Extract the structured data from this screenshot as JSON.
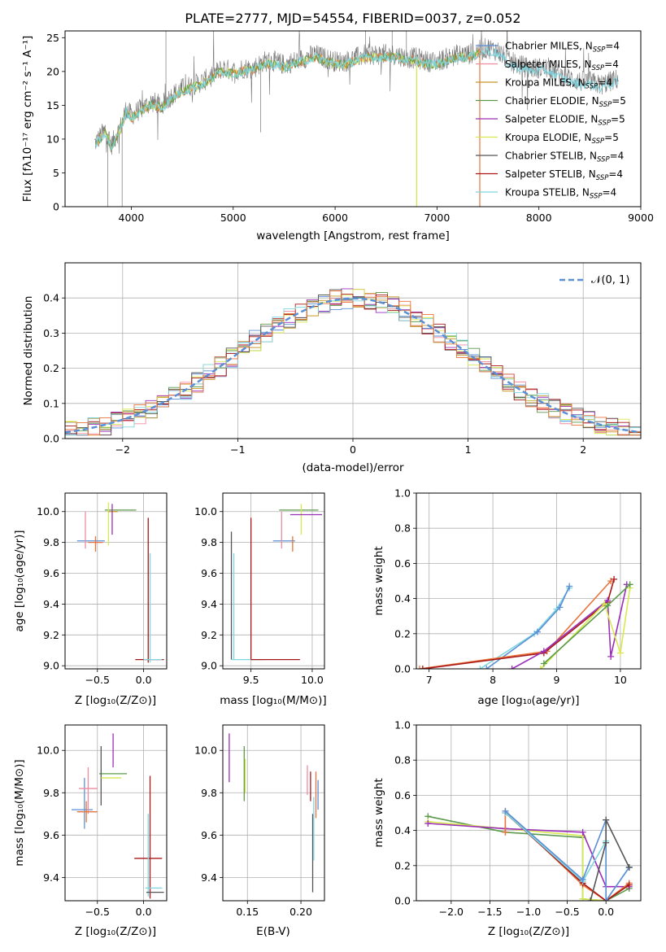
{
  "colors": {
    "chabrier_miles": "#5b8fd6",
    "salpeter_miles": "#f08aa0",
    "kroupa_miles": "#c8962a",
    "chabrier_elodie": "#5a9a4a",
    "salpeter_elodie": "#9b30b8",
    "kroupa_elodie": "#d8e850",
    "chabrier_stelib": "#555555",
    "salpeter_stelib": "#a81818",
    "kroupa_stelib": "#7ed6e0",
    "orange": "#e8743b",
    "gaussian": "#5b8fd6",
    "spectrum": "#777777",
    "grid": "#b0b0b0"
  },
  "chart_data": [
    {
      "id": "spectrum",
      "type": "line",
      "title": "PLATE=2777, MJD=54554, FIBERID=0037, z=0.052",
      "xlabel": "wavelength [Angstrom, rest frame]",
      "ylabel": "Flux [fλ10⁻¹⁷ erg cm⁻² s⁻¹ A⁻¹]",
      "xlim": [
        3350,
        9000
      ],
      "ylim": [
        0,
        26
      ],
      "xticks": [
        4000,
        5000,
        6000,
        7000,
        8000,
        9000
      ],
      "yticks": [
        0,
        5,
        10,
        15,
        20,
        25
      ],
      "grid": false,
      "legend": "upper-right",
      "series_names": [
        "Chabrier MILES, N_SSP=4",
        "Salpeter MILES, N_SSP=4",
        "Kroupa MILES, N_SSP=4",
        "Chabrier ELODIE, N_SSP=5",
        "Salpeter ELODIE, N_SSP=5",
        "Kroupa ELODIE, N_SSP=5",
        "Chabrier STELIB, N_SSP=4",
        "Salpeter STELIB, N_SSP=4",
        "Kroupa STELIB, N_SSP=4"
      ],
      "data_x": [
        3650,
        3700,
        3750,
        3800,
        3850,
        3900,
        3950,
        4000,
        4100,
        4200,
        4300,
        4400,
        4500,
        4600,
        4700,
        4800,
        4900,
        5000,
        5100,
        5200,
        5300,
        5400,
        5500,
        5600,
        5700,
        5800,
        5900,
        6000,
        6100,
        6200,
        6300,
        6400,
        6500,
        6600,
        6700,
        6800,
        6900,
        7000,
        7100,
        7200,
        7300,
        7400,
        7500,
        7600,
        7700,
        7800,
        7900,
        8000,
        8100,
        8200,
        8300,
        8400,
        8500,
        8600,
        8700,
        8800
      ],
      "data_y": [
        9.5,
        10.5,
        11.5,
        9.0,
        10.5,
        12.0,
        14.5,
        13.5,
        14.5,
        15.5,
        15.0,
        16.5,
        17.5,
        18.0,
        18.5,
        19.5,
        20.5,
        20.0,
        20.5,
        20.5,
        21.5,
        21.5,
        21.0,
        21.5,
        22.0,
        22.5,
        22.0,
        21.5,
        21.5,
        22.0,
        22.5,
        22.5,
        22.5,
        22.5,
        22.0,
        22.0,
        21.5,
        21.5,
        22.0,
        22.5,
        22.5,
        23.0,
        23.5,
        23.0,
        21.5,
        21.0,
        20.5,
        20.5,
        20.5,
        19.5,
        19.0,
        18.5,
        18.5,
        18.0,
        18.5,
        19.0
      ],
      "model_break_x": 7420
    },
    {
      "id": "histogram",
      "type": "bar",
      "xlabel": "(data-model)/error",
      "ylabel": "Normed distribution",
      "xlim": [
        -2.5,
        2.5
      ],
      "ylim": [
        0,
        0.5
      ],
      "xticks": [
        -2,
        -1,
        0,
        1,
        2
      ],
      "yticks": [
        0.0,
        0.1,
        0.2,
        0.3,
        0.4
      ],
      "grid": true,
      "legend": "top-right",
      "legend_label": "𝒩(0, 1)",
      "bin_width": 0.1
    },
    {
      "id": "age_vs_Z",
      "type": "scatter",
      "xlabel": "Z [log₁₀(Z/Z⊙)]",
      "ylabel": "age  [log₁₀(age/yr)]",
      "xlim": [
        -0.85,
        0.25
      ],
      "ylim": [
        8.98,
        10.12
      ],
      "xticks": [
        -0.5,
        0.0
      ],
      "yticks": [
        9.0,
        9.2,
        9.4,
        9.6,
        9.8,
        10.0
      ],
      "grid": true
    },
    {
      "id": "age_vs_mass",
      "type": "scatter",
      "xlabel": "mass [log₁₀(M/M⊙)]",
      "xlim": [
        9.27,
        10.1
      ],
      "ylim": [
        8.98,
        10.12
      ],
      "xticks": [
        9.5,
        10.0
      ],
      "yticks": [
        9.0,
        9.2,
        9.4,
        9.6,
        9.8,
        10.0
      ],
      "grid": true
    },
    {
      "id": "massweight_vs_age",
      "type": "line",
      "xlabel": "age  [log₁₀(age/yr)]",
      "ylabel": "mass weight",
      "xlim": [
        6.8,
        10.32
      ],
      "ylim": [
        0,
        1
      ],
      "xticks": [
        7,
        8,
        9,
        10
      ],
      "yticks": [
        0.0,
        0.2,
        0.4,
        0.6,
        0.8,
        1.0
      ],
      "grid": true
    },
    {
      "id": "mass_vs_Z",
      "type": "scatter",
      "xlabel": "Z [log₁₀(Z/Z⊙)]",
      "ylabel": "mass [log₁₀(M/M⊙)]",
      "xlim": [
        -0.85,
        0.25
      ],
      "ylim": [
        9.29,
        10.12
      ],
      "xticks": [
        -0.5,
        0.0
      ],
      "yticks": [
        9.4,
        9.6,
        9.8,
        10.0
      ],
      "grid": true
    },
    {
      "id": "mass_vs_ebv",
      "type": "scatter",
      "xlabel": "E(B-V)",
      "xlim": [
        0.127,
        0.222
      ],
      "ylim": [
        9.29,
        10.12
      ],
      "xticks": [
        0.15,
        0.2
      ],
      "yticks": [
        9.4,
        9.6,
        9.8,
        10.0
      ],
      "grid": true
    },
    {
      "id": "massweight_vs_Z",
      "type": "line",
      "xlabel": "Z [log₁₀(Z/Z⊙)]",
      "ylabel": "mass weight",
      "xlim": [
        -2.45,
        0.45
      ],
      "ylim": [
        0,
        1
      ],
      "xticks": [
        -2.0,
        -1.5,
        -1.0,
        -0.5,
        0.0
      ],
      "yticks": [
        0.0,
        0.2,
        0.4,
        0.6,
        0.8,
        1.0
      ],
      "grid": true
    }
  ]
}
